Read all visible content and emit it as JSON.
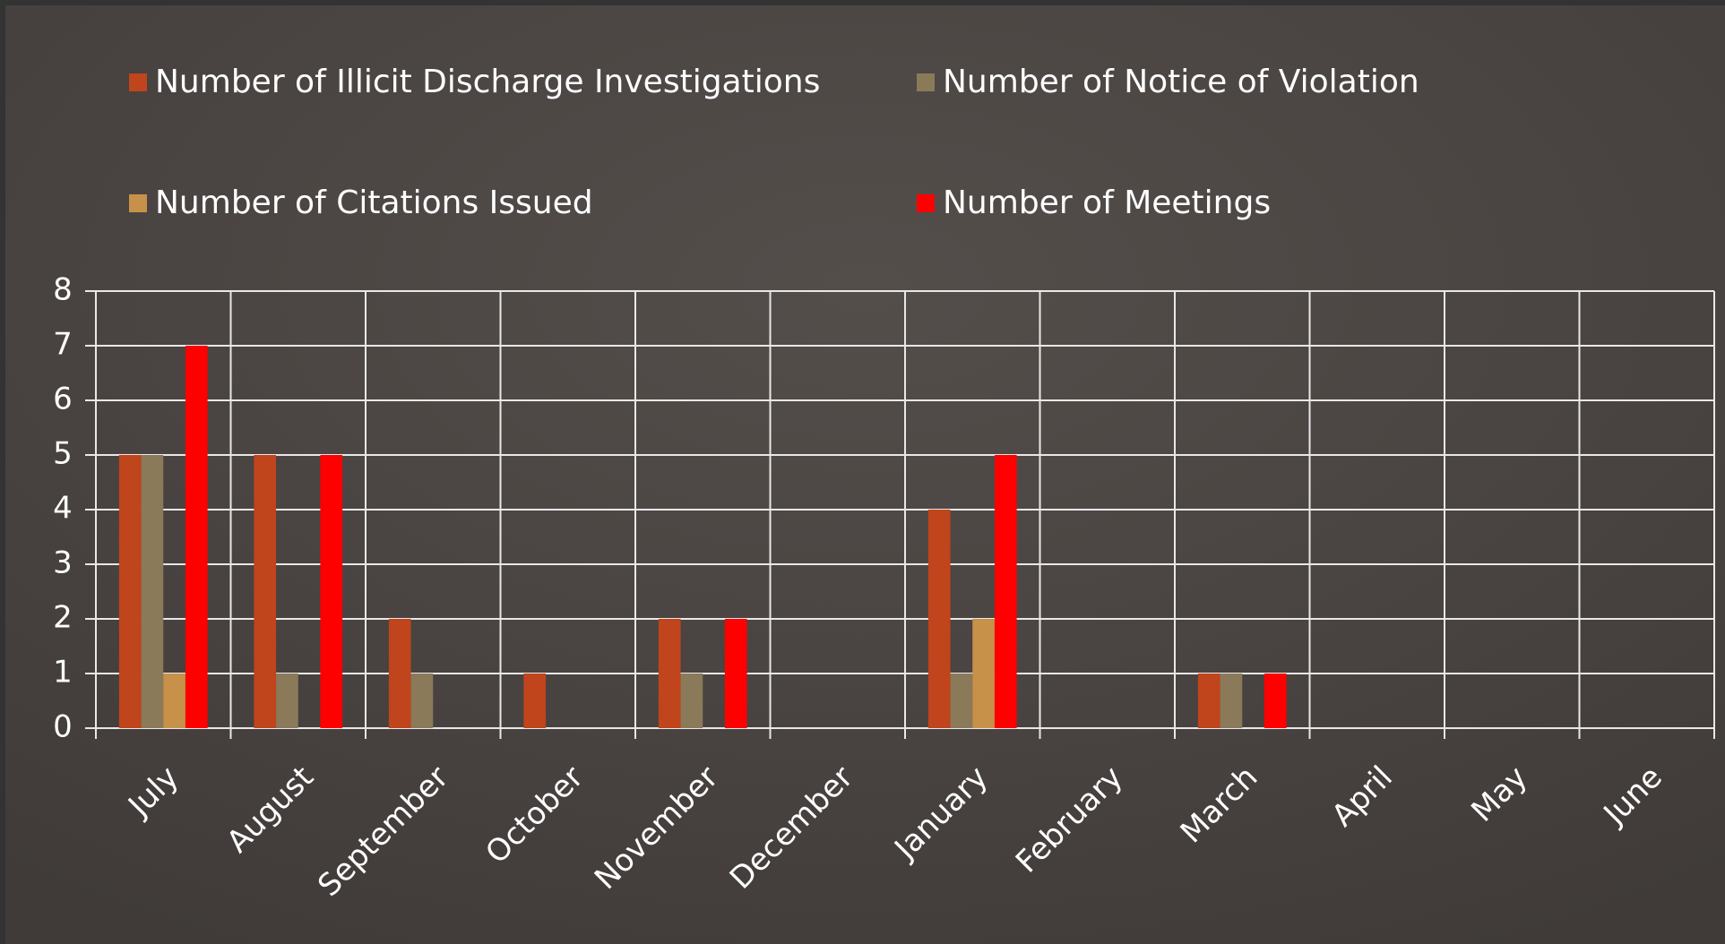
{
  "chart_data": {
    "type": "bar",
    "categories": [
      "July",
      "August",
      "September",
      "October",
      "November",
      "December",
      "January",
      "February",
      "March",
      "April",
      "May",
      "June"
    ],
    "series": [
      {
        "name": "Number of Illicit Discharge Investigations",
        "color": "#c0441c",
        "values": [
          5,
          5,
          2,
          1,
          2,
          0,
          4,
          0,
          1,
          0,
          0,
          0
        ]
      },
      {
        "name": "Number of Notice of Violation",
        "color": "#8b7a5a",
        "values": [
          5,
          1,
          1,
          0,
          1,
          0,
          1,
          0,
          1,
          0,
          0,
          0
        ]
      },
      {
        "name": "Number of Citations Issued",
        "color": "#c8914a",
        "values": [
          1,
          0,
          0,
          0,
          0,
          0,
          2,
          0,
          0,
          0,
          0,
          0
        ]
      },
      {
        "name": "Number of Meetings",
        "color": "#ff0000",
        "values": [
          7,
          5,
          0,
          0,
          2,
          0,
          5,
          0,
          1,
          0,
          0,
          0
        ]
      }
    ],
    "ylim": [
      0,
      8
    ],
    "yticks": [
      0,
      1,
      2,
      3,
      4,
      5,
      6,
      7,
      8
    ],
    "grid": true,
    "legend": "top"
  }
}
